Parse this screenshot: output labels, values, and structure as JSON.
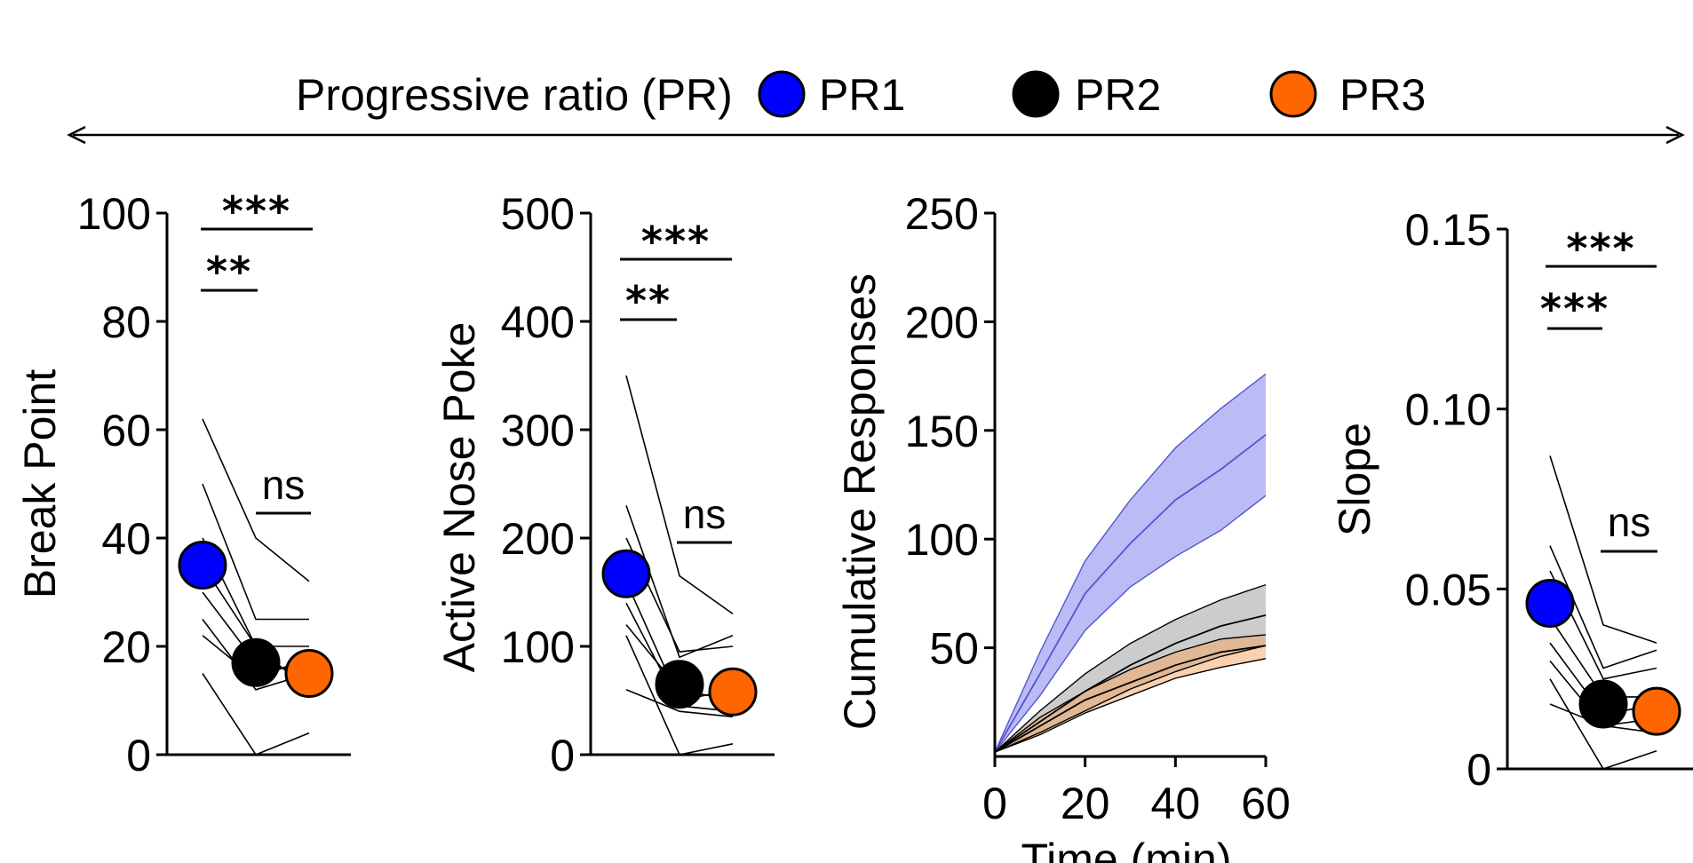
{
  "header": {
    "title": "Progressive ratio (PR)",
    "legend": [
      {
        "label": "PR1",
        "color": "#0000ff"
      },
      {
        "label": "PR2",
        "color": "#000000"
      },
      {
        "label": "PR3",
        "color": "#ff6600"
      }
    ]
  },
  "chart_data": [
    {
      "type": "scatter",
      "ylabel": "Break Point",
      "ylim": [
        0,
        100
      ],
      "yticks": [
        0,
        20,
        40,
        60,
        80,
        100
      ],
      "tick_labels": [
        "0",
        "20",
        "40",
        "60",
        "80",
        "100"
      ],
      "groups": [
        "PR1",
        "PR2",
        "PR3"
      ],
      "means": [
        35,
        17,
        15
      ],
      "subjects": [
        [
          62,
          40,
          32
        ],
        [
          50,
          25,
          25
        ],
        [
          40,
          20,
          20
        ],
        [
          35,
          20,
          12
        ],
        [
          30,
          17,
          15
        ],
        [
          25,
          12,
          15
        ],
        [
          22,
          14,
          18
        ],
        [
          15,
          0,
          4
        ]
      ],
      "significance": [
        {
          "pair": [
            0,
            2
          ],
          "label": "***"
        },
        {
          "pair": [
            0,
            1
          ],
          "label": "**"
        },
        {
          "pair": [
            1,
            2
          ],
          "label": "ns"
        }
      ]
    },
    {
      "type": "scatter",
      "ylabel": "Active Nose Poke",
      "ylim": [
        0,
        500
      ],
      "yticks": [
        0,
        100,
        200,
        300,
        400,
        500
      ],
      "tick_labels": [
        "0",
        "100",
        "200",
        "300",
        "400",
        "500"
      ],
      "groups": [
        "PR1",
        "PR2",
        "PR3"
      ],
      "means": [
        167,
        65,
        58
      ],
      "subjects": [
        [
          350,
          165,
          130
        ],
        [
          230,
          90,
          110
        ],
        [
          200,
          95,
          100
        ],
        [
          160,
          50,
          60
        ],
        [
          140,
          45,
          40
        ],
        [
          120,
          60,
          50
        ],
        [
          110,
          0,
          10
        ],
        [
          60,
          40,
          35
        ]
      ],
      "significance": [
        {
          "pair": [
            0,
            2
          ],
          "label": "***"
        },
        {
          "pair": [
            0,
            1
          ],
          "label": "**"
        },
        {
          "pair": [
            1,
            2
          ],
          "label": "ns"
        }
      ]
    },
    {
      "type": "area",
      "ylabel": "Cumulative Responses",
      "xlabel": "Time (min)",
      "xlim": [
        0,
        60
      ],
      "ylim": [
        0,
        250
      ],
      "xticks": [
        0,
        20,
        40,
        60
      ],
      "yticks": [
        50,
        100,
        150,
        200,
        250
      ],
      "x_tick_labels": [
        "0",
        "20",
        "40",
        "60"
      ],
      "y_tick_labels": [
        "50",
        "100",
        "150",
        "200",
        "250"
      ],
      "x": [
        0,
        10,
        20,
        30,
        40,
        50,
        60
      ],
      "series": [
        {
          "name": "PR1",
          "mean": [
            2,
            38,
            75,
            98,
            118,
            132,
            148
          ],
          "lower": [
            2,
            28,
            58,
            78,
            92,
            104,
            120
          ],
          "upper": [
            2,
            48,
            90,
            118,
            142,
            160,
            176
          ],
          "color": "#7777ee"
        },
        {
          "name": "PR2",
          "mean": [
            2,
            16,
            30,
            42,
            52,
            60,
            65
          ],
          "lower": [
            2,
            11,
            21,
            31,
            39,
            46,
            51
          ],
          "upper": [
            2,
            21,
            38,
            52,
            63,
            72,
            79
          ],
          "color": "#999999"
        },
        {
          "name": "PR3",
          "mean": [
            2,
            14,
            26,
            34,
            42,
            48,
            51
          ],
          "lower": [
            2,
            10,
            20,
            28,
            36,
            41,
            45
          ],
          "upper": [
            2,
            18,
            30,
            40,
            48,
            54,
            56
          ],
          "color": "#f4a460"
        }
      ]
    },
    {
      "type": "scatter",
      "ylabel": "Slope",
      "ylim": [
        0,
        0.15
      ],
      "yticks": [
        0,
        0.05,
        0.1,
        0.15
      ],
      "tick_labels": [
        "0",
        "0.05",
        "0.10",
        "0.15"
      ],
      "groups": [
        "PR1",
        "PR2",
        "PR3"
      ],
      "means": [
        0.046,
        0.018,
        0.016
      ],
      "subjects": [
        [
          0.087,
          0.04,
          0.035
        ],
        [
          0.062,
          0.028,
          0.033
        ],
        [
          0.055,
          0.025,
          0.028
        ],
        [
          0.042,
          0.02,
          0.02
        ],
        [
          0.035,
          0.015,
          0.018
        ],
        [
          0.03,
          0.012,
          0.014
        ],
        [
          0.025,
          0.0,
          0.005
        ],
        [
          0.018,
          0.012,
          0.01
        ]
      ],
      "significance": [
        {
          "pair": [
            0,
            2
          ],
          "label": "***"
        },
        {
          "pair": [
            0,
            1
          ],
          "label": "***"
        },
        {
          "pair": [
            1,
            2
          ],
          "label": "ns"
        }
      ]
    }
  ]
}
